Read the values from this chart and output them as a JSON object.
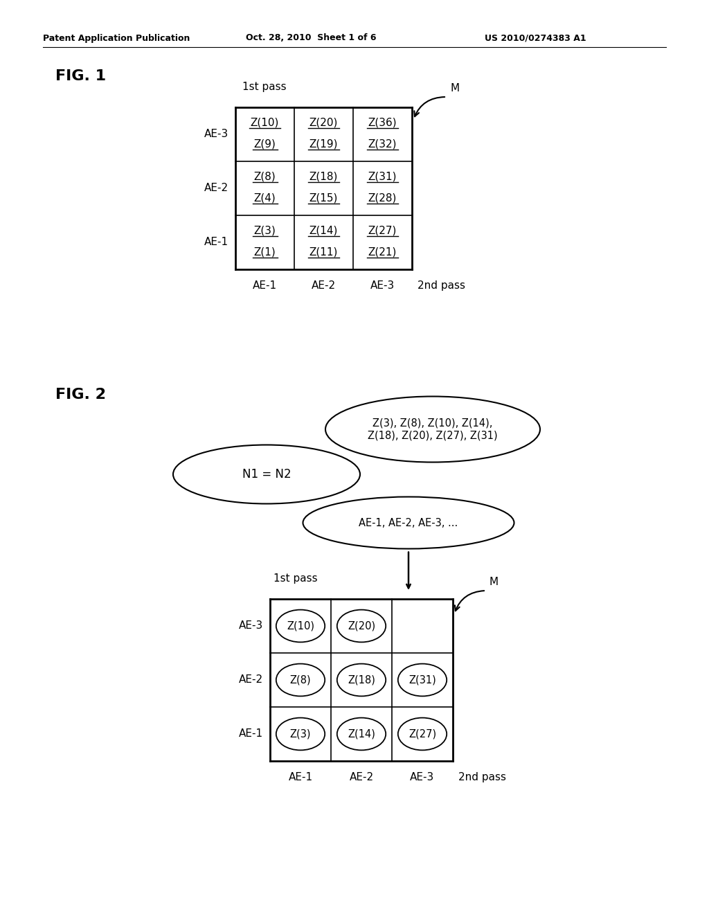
{
  "bg_color": "#ffffff",
  "header_text": "Patent Application Publication",
  "header_date": "Oct. 28, 2010  Sheet 1 of 6",
  "header_patent": "US 2010/0274383 A1",
  "fig1_label": "FIG. 1",
  "fig1_pass1_label": "1st pass",
  "fig1_pass2_label": "2nd pass",
  "fig1_row_labels": [
    "AE-3",
    "AE-2",
    "AE-1"
  ],
  "fig1_col_labels": [
    "AE-1",
    "AE-2",
    "AE-3"
  ],
  "fig1_M_label": "M",
  "fig1_cells": [
    [
      [
        "Z(10)",
        "Z(9)"
      ],
      [
        "Z(20)",
        "Z(19)"
      ],
      [
        "Z(36)",
        "Z(32)"
      ]
    ],
    [
      [
        "Z(8)",
        "Z(4)"
      ],
      [
        "Z(18)",
        "Z(15)"
      ],
      [
        "Z(31)",
        "Z(28)"
      ]
    ],
    [
      [
        "Z(3)",
        "Z(1)"
      ],
      [
        "Z(14)",
        "Z(11)"
      ],
      [
        "Z(27)",
        "Z(21)"
      ]
    ]
  ],
  "fig2_label": "FIG. 2",
  "fig2_ellipse1_text": "Z(3), Z(8), Z(10), Z(14),\nZ(18), Z(20), Z(27), Z(31)",
  "fig2_ellipse2_text": "N1 = N2",
  "fig2_ellipse3_text": "AE-1, AE-2, AE-3, ...",
  "fig2_pass1_label": "1st pass",
  "fig2_pass2_label": "2nd pass",
  "fig2_row_labels": [
    "AE-3",
    "AE-2",
    "AE-1"
  ],
  "fig2_col_labels": [
    "AE-1",
    "AE-2",
    "AE-3"
  ],
  "fig2_M_label": "M",
  "fig2_cell_vals": [
    [
      "Z(10)",
      "Z(20)",
      ""
    ],
    [
      "Z(8)",
      "Z(18)",
      "Z(31)"
    ],
    [
      "Z(3)",
      "Z(14)",
      "Z(27)"
    ]
  ],
  "fig2_cell_circled": [
    [
      true,
      true,
      false
    ],
    [
      true,
      true,
      true
    ],
    [
      true,
      true,
      true
    ]
  ]
}
